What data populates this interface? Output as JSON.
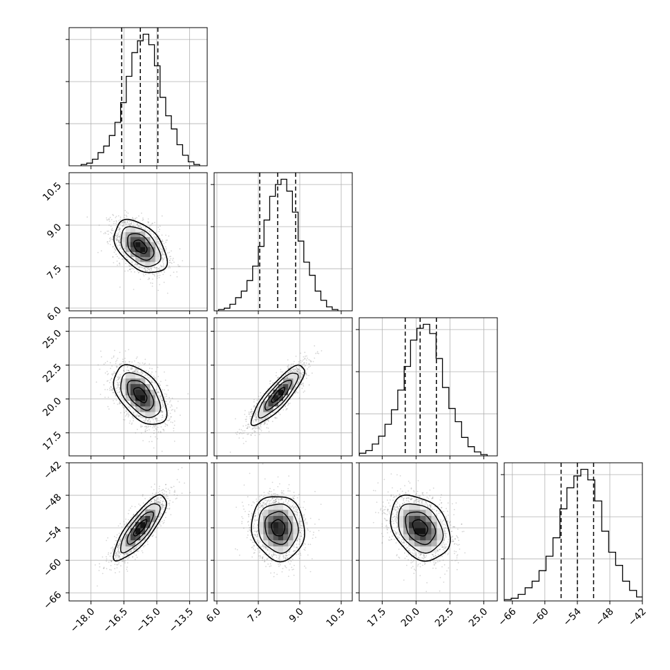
{
  "chart_data": {
    "type": "corner",
    "title": "",
    "parameters": [
      {
        "range": [
          -19.0,
          -12.7
        ],
        "ticks": [
          -18.0,
          -16.5,
          -15.0,
          -13.5
        ],
        "tick_labels": [
          "−18.0",
          "−16.5",
          "−15.0",
          "−13.5"
        ],
        "mean": -15.75,
        "std": 0.6,
        "quantiles": [
          -16.6,
          -15.75,
          -14.95
        ],
        "hist_counts": [
          0.01,
          0.02,
          0.05,
          0.1,
          0.15,
          0.23,
          0.33,
          0.48,
          0.68,
          0.86,
          0.95,
          1.0,
          0.92,
          0.76,
          0.52,
          0.38,
          0.28,
          0.16,
          0.08,
          0.03,
          0.01
        ]
      },
      {
        "range": [
          5.9,
          10.9
        ],
        "ticks": [
          6.0,
          7.5,
          9.0,
          10.5
        ],
        "tick_labels": [
          "6.0",
          "7.5",
          "9.0",
          "10.5"
        ],
        "mean": 8.22,
        "std": 0.48,
        "quantiles": [
          7.55,
          8.2,
          8.85
        ],
        "hist_counts": [
          0.01,
          0.02,
          0.05,
          0.1,
          0.15,
          0.23,
          0.34,
          0.49,
          0.69,
          0.87,
          0.96,
          1.0,
          0.91,
          0.75,
          0.53,
          0.37,
          0.27,
          0.15,
          0.08,
          0.03,
          0.01
        ]
      },
      {
        "range": [
          15.8,
          26.0
        ],
        "ticks": [
          17.5,
          20.0,
          22.5,
          25.0
        ],
        "tick_labels": [
          "17.5",
          "20.0",
          "22.5",
          "25.0"
        ],
        "mean": 20.3,
        "std": 1.1,
        "quantiles": [
          19.2,
          20.3,
          21.5
        ],
        "hist_counts": [
          0.01,
          0.02,
          0.04,
          0.09,
          0.15,
          0.24,
          0.35,
          0.5,
          0.68,
          0.88,
          0.97,
          1.0,
          0.93,
          0.74,
          0.52,
          0.36,
          0.26,
          0.14,
          0.07,
          0.03,
          0.01
        ]
      },
      {
        "range": [
          -67.5,
          -42.0
        ],
        "ticks": [
          -66,
          -60,
          -54,
          -48,
          -42
        ],
        "tick_labels": [
          "−66",
          "−60",
          "−54",
          "−48",
          "−42"
        ],
        "mean": -54.0,
        "std": 3.0,
        "quantiles": [
          -57.0,
          -54.0,
          -51.0
        ],
        "hist_counts": [
          0.01,
          0.02,
          0.05,
          0.1,
          0.15,
          0.23,
          0.34,
          0.48,
          0.7,
          0.86,
          0.95,
          1.0,
          0.92,
          0.76,
          0.53,
          0.37,
          0.27,
          0.15,
          0.08,
          0.03,
          0.01
        ]
      }
    ],
    "correlations": [
      {
        "row": 1,
        "col": 0,
        "rho": -0.45
      },
      {
        "row": 2,
        "col": 0,
        "rho": -0.5
      },
      {
        "row": 2,
        "col": 1,
        "rho": 0.85
      },
      {
        "row": 3,
        "col": 0,
        "rho": 0.82
      },
      {
        "row": 3,
        "col": 1,
        "rho": -0.08
      },
      {
        "row": 3,
        "col": 2,
        "rho": -0.3
      }
    ],
    "contour_levels": [
      0.5,
      1.0,
      1.5,
      2.0
    ],
    "grid": true,
    "colors": {
      "line": "#000000",
      "grid": "#b0b0b0",
      "scatter": "#888888",
      "frame": "#000000"
    }
  }
}
